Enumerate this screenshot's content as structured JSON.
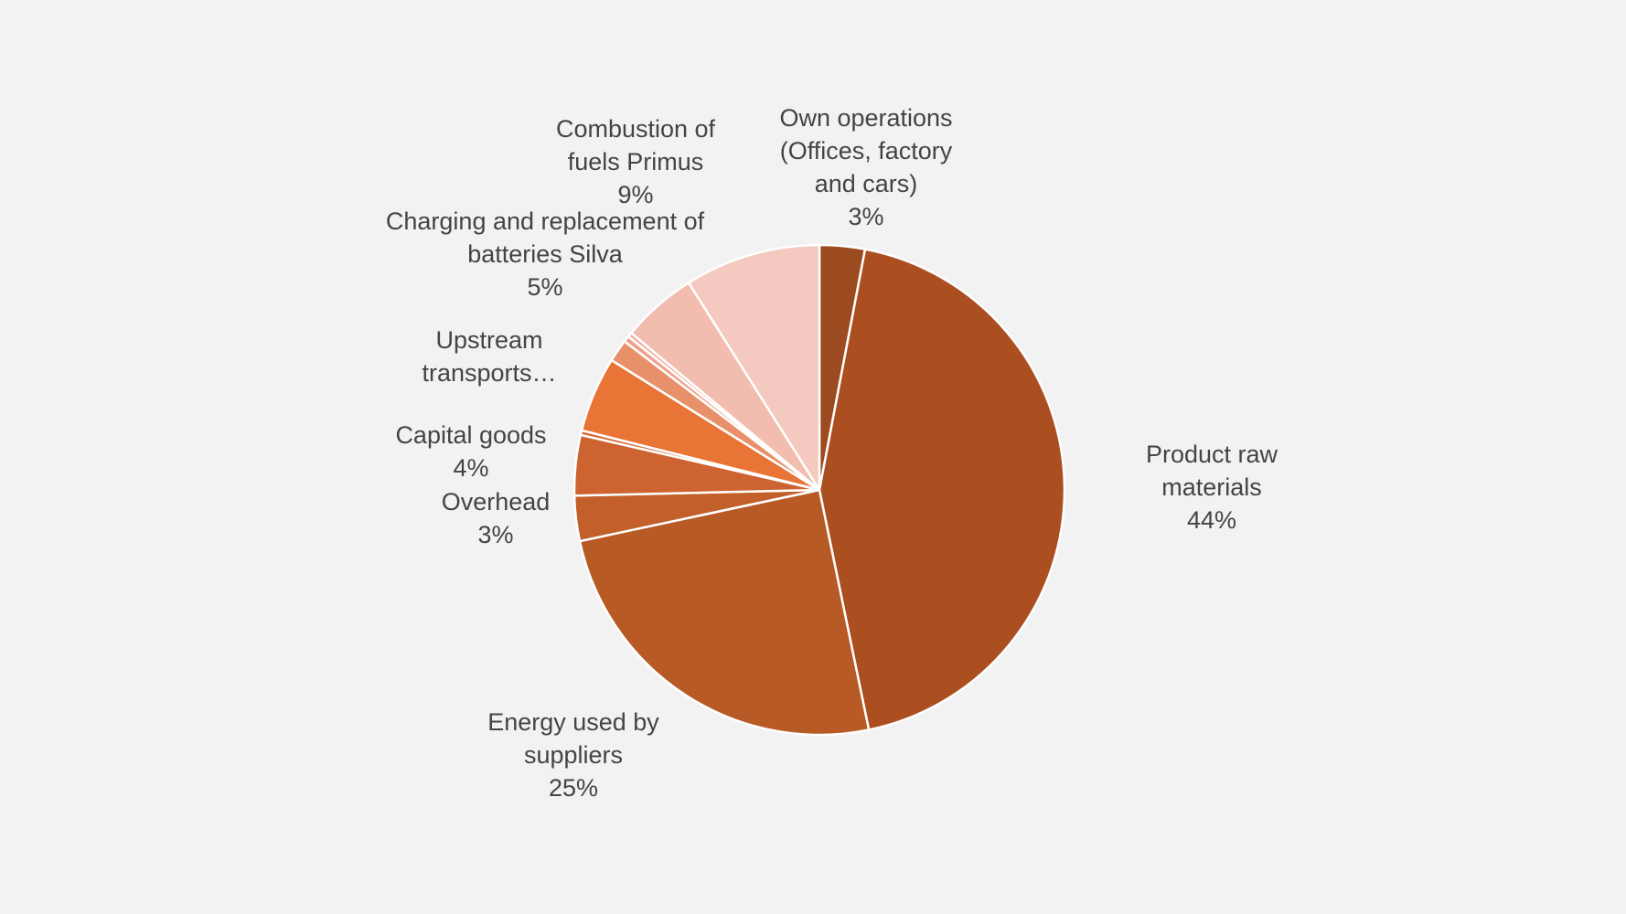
{
  "chart_data": {
    "type": "pie",
    "categories": [
      "Own operations (Offices, factory and cars)",
      "Product raw materials",
      "Energy used by suppliers",
      "Overhead",
      "Capital goods",
      null,
      "Upstream transports…",
      null,
      null,
      null,
      "Charging and replacement of batteries Silva",
      "Combustion of fuels Primus"
    ],
    "values": [
      3,
      44,
      25,
      3,
      4,
      0.3,
      5,
      1.5,
      0.4,
      0.3,
      5,
      9
    ],
    "value_labels": [
      "3%",
      "44%",
      "25%",
      "3%",
      "4%",
      null,
      null,
      null,
      null,
      null,
      "5%",
      "9%"
    ],
    "colors": [
      "#9c4a1f",
      "#ab4f21",
      "#b85a26",
      "#c35f2a",
      "#cd6330",
      "#d46a35",
      "#e87436",
      "#e8906a",
      "#eda08a",
      "#f0b0a0",
      "#f2bcae",
      "#f4c9bf"
    ]
  }
}
